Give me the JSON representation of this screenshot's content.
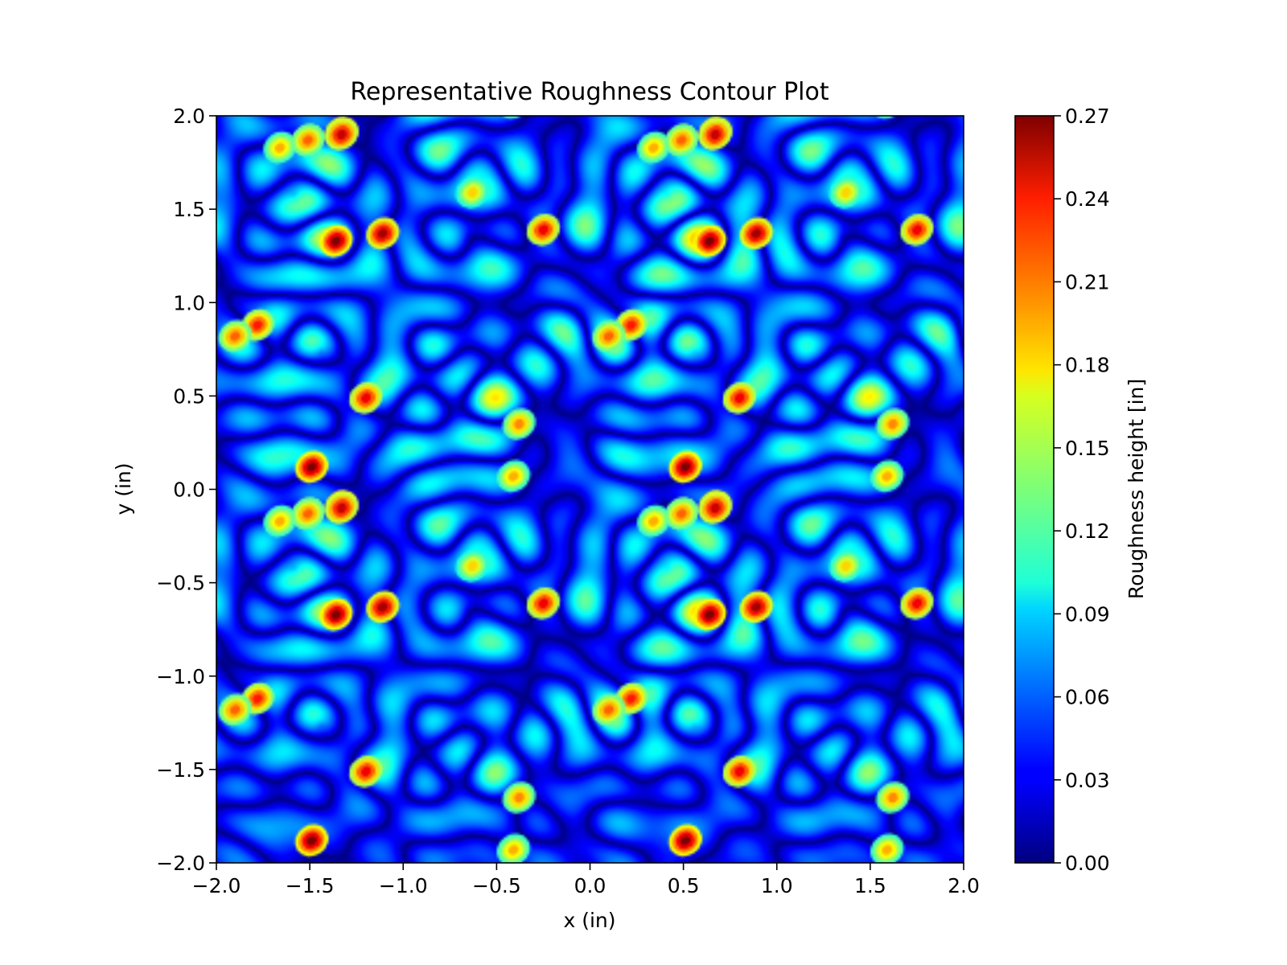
{
  "chart_data": {
    "type": "heatmap",
    "title": "Representative Roughness Contour Plot",
    "xlabel": "x (in)",
    "ylabel": "y (in)",
    "xlim": [
      -2.0,
      2.0
    ],
    "ylim": [
      -2.0,
      2.0
    ],
    "x_ticks": [
      "−2.0",
      "−1.5",
      "−1.0",
      "−0.5",
      "0.0",
      "0.5",
      "1.0",
      "1.5",
      "2.0"
    ],
    "y_ticks": [
      "2.0",
      "1.5",
      "1.0",
      "0.5",
      "0.0",
      "−0.5",
      "−1.0",
      "−1.5",
      "−2.0"
    ],
    "x_tick_values": [
      -2.0,
      -1.5,
      -1.0,
      -0.5,
      0.0,
      0.5,
      1.0,
      1.5,
      2.0
    ],
    "y_tick_values": [
      2.0,
      1.5,
      1.0,
      0.5,
      0.0,
      -0.5,
      -1.0,
      -1.5,
      -2.0
    ],
    "colormap": "jet",
    "colorbar": {
      "label": "Roughness height [in]",
      "range": [
        0.0,
        0.27
      ],
      "ticks": [
        "0.00",
        "0.03",
        "0.06",
        "0.09",
        "0.12",
        "0.15",
        "0.18",
        "0.21",
        "0.24",
        "0.27"
      ],
      "tick_values": [
        0.0,
        0.03,
        0.06,
        0.09,
        0.12,
        0.15,
        0.18,
        0.21,
        0.24,
        0.27
      ]
    },
    "pattern": {
      "description": "Interfering radial wave cells; field periodic with period 2 in x and y",
      "period": [
        2.0,
        2.0
      ],
      "peaks": [
        {
          "x": -1.33,
          "y": 1.91,
          "z": 0.27
        },
        {
          "x": -1.51,
          "y": 1.87,
          "z": 0.22
        },
        {
          "x": -1.66,
          "y": 1.83,
          "z": 0.19
        },
        {
          "x": -1.36,
          "y": 1.33,
          "z": 0.27
        },
        {
          "x": -1.11,
          "y": 1.37,
          "z": 0.26
        },
        {
          "x": -0.25,
          "y": 1.39,
          "z": 0.24
        },
        {
          "x": -1.78,
          "y": 0.88,
          "z": 0.23
        },
        {
          "x": -1.9,
          "y": 0.82,
          "z": 0.21
        },
        {
          "x": -1.2,
          "y": 0.49,
          "z": 0.24
        },
        {
          "x": -1.49,
          "y": 0.12,
          "z": 0.27
        },
        {
          "x": -1.33,
          "y": -0.1,
          "z": 0.25
        },
        {
          "x": -1.51,
          "y": -0.13,
          "z": 0.21
        },
        {
          "x": -0.38,
          "y": 0.35,
          "z": 0.2
        },
        {
          "x": -0.41,
          "y": 0.07,
          "z": 0.19
        },
        {
          "x": -0.63,
          "y": -0.41,
          "z": 0.18
        }
      ]
    }
  }
}
